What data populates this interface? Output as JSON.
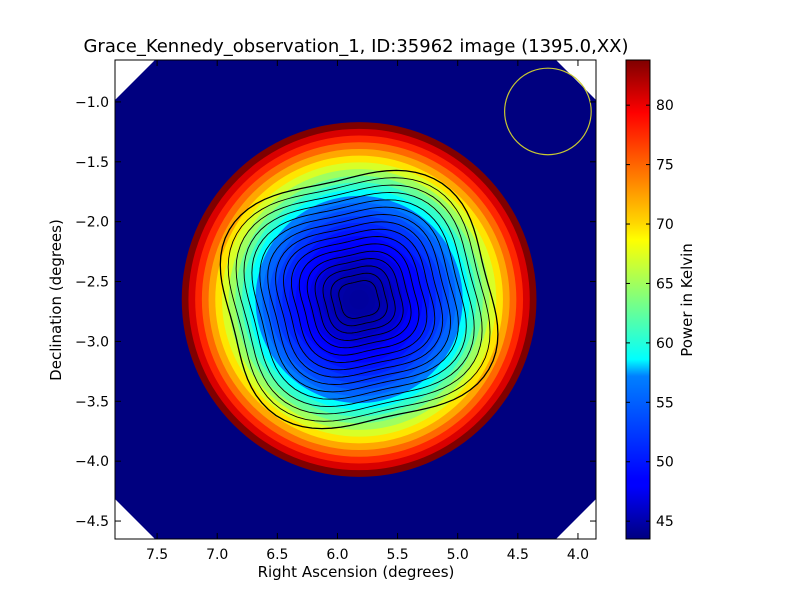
{
  "chart_data": {
    "type": "heatmap",
    "title": "Grace_Kennedy_observation_1, ID:35962 image (1395.0,XX)",
    "xlabel": "Right Ascension (degrees)",
    "ylabel": "Declination (degrees)",
    "xlim": [
      7.85,
      3.85
    ],
    "ylim": [
      -4.65,
      -0.65
    ],
    "x_ticks": [
      7.5,
      7.0,
      6.5,
      6.0,
      5.5,
      5.0,
      4.5,
      4.0
    ],
    "x_tick_labels": [
      "7.5",
      "7.0",
      "6.5",
      "6.0",
      "5.5",
      "5.0",
      "4.5",
      "4.0"
    ],
    "y_ticks": [
      -1.0,
      -1.5,
      -2.0,
      -2.5,
      -3.0,
      -3.5,
      -4.0,
      -4.5
    ],
    "y_tick_labels": [
      "−1.0",
      "−1.5",
      "−2.0",
      "−2.5",
      "−3.0",
      "−3.5",
      "−4.0",
      "−4.5"
    ],
    "colormap": "jet",
    "colorbar": {
      "label": "Power in Kelvin",
      "range": [
        43.5,
        83.8
      ],
      "ticks": [
        45,
        50,
        55,
        60,
        65,
        70,
        75,
        80
      ],
      "tick_labels": [
        "45",
        "50",
        "55",
        "60",
        "65",
        "70",
        "75",
        "80"
      ]
    },
    "source": {
      "peak_ra": 5.82,
      "peak_dec": -2.65,
      "peak_value": 83.8,
      "background_value": 44.5
    },
    "contour_color": "#000000",
    "beam_marker": {
      "ra": 4.25,
      "dec": -1.08,
      "radius_deg": 0.36,
      "color": "#c8c832"
    }
  }
}
